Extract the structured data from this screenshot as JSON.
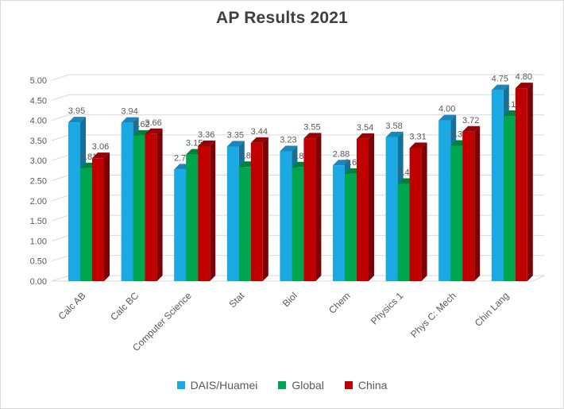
{
  "chart_data": {
    "type": "bar",
    "style": "3d-clustered-column",
    "title": "AP Results 2021",
    "categories": [
      "Calc AB",
      "Calc BC",
      "Computer Science",
      "Stat",
      "Biol",
      "Chem",
      "Physics 1",
      "Phys C: Mech",
      "Chin Lang"
    ],
    "series": [
      {
        "name": "DAIS/Huamei",
        "color": "#1BA9E4",
        "side_color": "#15719C",
        "top_color": "#1B86BB",
        "values": [
          3.95,
          3.94,
          2.78,
          3.35,
          3.23,
          2.88,
          3.58,
          4.0,
          4.75
        ]
      },
      {
        "name": "Global",
        "color": "#00A64F",
        "side_color": "#006B32",
        "top_color": "#00823D",
        "values": [
          2.81,
          3.62,
          3.15,
          2.84,
          2.83,
          2.67,
          2.42,
          3.37,
          4.11
        ]
      },
      {
        "name": "China",
        "color": "#C00000",
        "side_color": "#7C0103",
        "top_color": "#960205",
        "values": [
          3.06,
          3.66,
          3.36,
          3.44,
          3.55,
          3.54,
          3.31,
          3.72,
          4.8
        ]
      }
    ],
    "ylim": [
      0,
      5
    ],
    "ytick_step": 0.5,
    "yticks": [
      "0.00",
      "0.50",
      "1.00",
      "1.50",
      "2.00",
      "2.50",
      "3.00",
      "3.50",
      "4.00",
      "4.50",
      "5.00"
    ],
    "value_label_decimals": 2,
    "grid": true,
    "legend_position": "bottom",
    "axis_text_color": "#595959",
    "label_text_color": "#595959",
    "grid_color": "#D9D9D9",
    "border_color": "#D9D9D9",
    "title_color": "#3F3F3F"
  }
}
